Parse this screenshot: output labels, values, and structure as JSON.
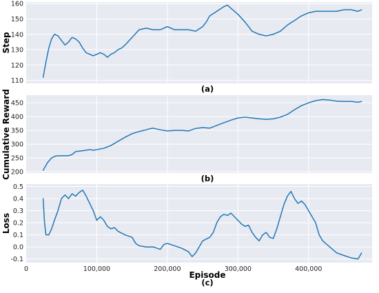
{
  "colors": {
    "line": "#1f77b4",
    "panel_bg": "#e8eaf2",
    "grid": "#ffffff"
  },
  "xlabel": "Episode",
  "xticks": [
    0,
    100000,
    200000,
    300000,
    400000
  ],
  "xtick_labels": [
    "0",
    "100,000",
    "200,000",
    "300,000",
    "400,000"
  ],
  "chart_data": [
    {
      "type": "line",
      "caption": "(a)",
      "ylabel": "Step",
      "xlim": [
        0,
        490000
      ],
      "ylim": [
        108,
        161
      ],
      "yticks": [
        110,
        120,
        130,
        140,
        150,
        160
      ],
      "grid": true,
      "x": [
        24000,
        28000,
        32000,
        36000,
        40000,
        45000,
        50000,
        55000,
        60000,
        65000,
        70000,
        75000,
        80000,
        85000,
        90000,
        95000,
        100000,
        105000,
        110000,
        115000,
        120000,
        125000,
        130000,
        135000,
        140000,
        150000,
        160000,
        170000,
        180000,
        190000,
        200000,
        210000,
        220000,
        230000,
        240000,
        250000,
        255000,
        260000,
        270000,
        280000,
        285000,
        290000,
        295000,
        300000,
        310000,
        320000,
        330000,
        340000,
        350000,
        360000,
        370000,
        380000,
        390000,
        400000,
        410000,
        420000,
        430000,
        440000,
        450000,
        460000,
        470000,
        475000
      ],
      "y": [
        112,
        122,
        131,
        137,
        140,
        139,
        136,
        133,
        135,
        138,
        137,
        135,
        131,
        128,
        127,
        126,
        127,
        128,
        127,
        125,
        127,
        128,
        130,
        131,
        133,
        138,
        143,
        144,
        143,
        143,
        145,
        143,
        143,
        143,
        142,
        145,
        148,
        152,
        155,
        158,
        159,
        157,
        155,
        153,
        148,
        142,
        140,
        139,
        140,
        142,
        146,
        149,
        152,
        154,
        155,
        155,
        155,
        155,
        156,
        156,
        155,
        156
      ]
    },
    {
      "type": "line",
      "caption": "(b)",
      "ylabel": "Cumulative Reward",
      "xlim": [
        0,
        490000
      ],
      "ylim": [
        195,
        478
      ],
      "yticks": [
        200,
        250,
        300,
        350,
        400,
        450
      ],
      "grid": true,
      "x": [
        24000,
        30000,
        36000,
        42000,
        50000,
        60000,
        65000,
        70000,
        80000,
        90000,
        95000,
        100000,
        110000,
        120000,
        130000,
        140000,
        150000,
        160000,
        170000,
        175000,
        180000,
        190000,
        200000,
        210000,
        220000,
        230000,
        240000,
        250000,
        260000,
        270000,
        280000,
        290000,
        300000,
        310000,
        320000,
        330000,
        340000,
        350000,
        360000,
        370000,
        380000,
        390000,
        400000,
        410000,
        420000,
        430000,
        440000,
        450000,
        460000,
        470000,
        475000
      ],
      "y": [
        205,
        232,
        250,
        257,
        258,
        258,
        262,
        273,
        276,
        280,
        278,
        280,
        285,
        295,
        310,
        325,
        338,
        346,
        352,
        356,
        358,
        352,
        348,
        350,
        350,
        348,
        357,
        360,
        358,
        368,
        378,
        387,
        395,
        398,
        395,
        392,
        390,
        392,
        398,
        408,
        425,
        440,
        450,
        458,
        462,
        460,
        456,
        455,
        455,
        452,
        455
      ]
    },
    {
      "type": "line",
      "caption": "(c)",
      "ylabel": "Loss",
      "xlim": [
        0,
        490000
      ],
      "ylim": [
        -0.13,
        0.52
      ],
      "yticks": [
        -0.1,
        0.0,
        0.1,
        0.2,
        0.3,
        0.4,
        0.5
      ],
      "ytick_labels": [
        "-0.1",
        "0.0",
        "0.1",
        "0.2",
        "0.3",
        "0.4",
        "0.5"
      ],
      "grid": true,
      "x": [
        24000,
        26000,
        28000,
        32000,
        36000,
        40000,
        45000,
        50000,
        55000,
        60000,
        65000,
        70000,
        75000,
        80000,
        85000,
        90000,
        95000,
        100000,
        105000,
        110000,
        115000,
        120000,
        125000,
        130000,
        140000,
        150000,
        155000,
        160000,
        170000,
        180000,
        190000,
        195000,
        200000,
        210000,
        220000,
        230000,
        235000,
        240000,
        245000,
        250000,
        260000,
        265000,
        270000,
        275000,
        280000,
        285000,
        290000,
        300000,
        305000,
        310000,
        315000,
        320000,
        325000,
        330000,
        335000,
        340000,
        345000,
        350000,
        355000,
        360000,
        365000,
        370000,
        375000,
        380000,
        385000,
        390000,
        395000,
        400000,
        405000,
        410000,
        415000,
        420000,
        430000,
        440000,
        450000,
        460000,
        470000,
        475000
      ],
      "y": [
        0.4,
        0.2,
        0.1,
        0.1,
        0.15,
        0.22,
        0.3,
        0.4,
        0.43,
        0.4,
        0.44,
        0.42,
        0.45,
        0.47,
        0.42,
        0.36,
        0.3,
        0.22,
        0.25,
        0.22,
        0.17,
        0.15,
        0.16,
        0.13,
        0.1,
        0.08,
        0.03,
        0.01,
        0.0,
        0.0,
        -0.02,
        0.02,
        0.03,
        0.01,
        -0.01,
        -0.04,
        -0.08,
        -0.05,
        0.0,
        0.05,
        0.08,
        0.12,
        0.2,
        0.25,
        0.27,
        0.26,
        0.28,
        0.22,
        0.19,
        0.17,
        0.18,
        0.12,
        0.08,
        0.05,
        0.1,
        0.12,
        0.08,
        0.07,
        0.15,
        0.25,
        0.35,
        0.42,
        0.46,
        0.4,
        0.36,
        0.38,
        0.35,
        0.3,
        0.25,
        0.2,
        0.1,
        0.05,
        0.0,
        -0.05,
        -0.07,
        -0.09,
        -0.1,
        -0.05
      ]
    }
  ]
}
